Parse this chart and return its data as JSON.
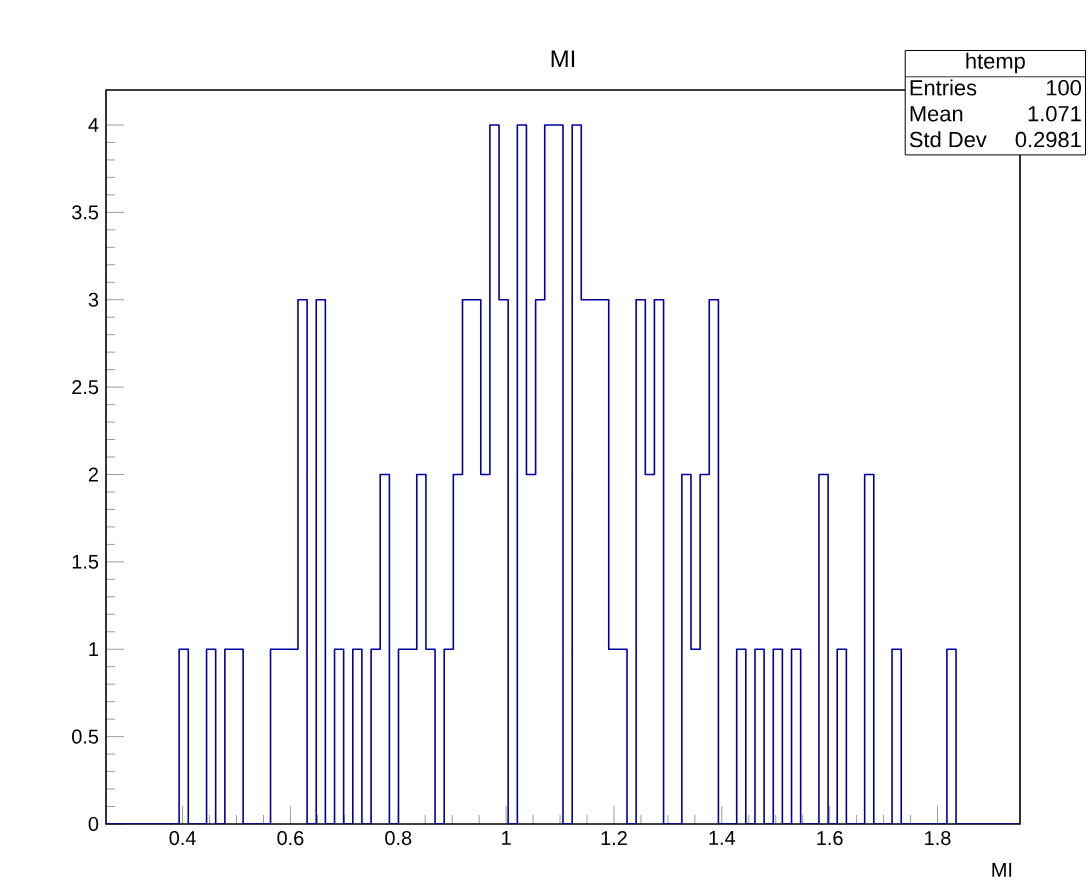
{
  "chart_data": {
    "type": "histogram",
    "title": "MI",
    "xlabel": "MI",
    "bins": [
      0.258,
      0.275,
      0.2919,
      0.3089,
      0.3258,
      0.3428,
      0.3597,
      0.3767,
      0.3936,
      0.4106,
      0.4275,
      0.4445,
      0.4614,
      0.4784,
      0.4953,
      0.5123,
      0.5292,
      0.5462,
      0.5631,
      0.5801,
      0.597,
      0.614,
      0.6309,
      0.6479,
      0.6648,
      0.6818,
      0.6987,
      0.7157,
      0.7326,
      0.7496,
      0.7665,
      0.7835,
      0.8004,
      0.8174,
      0.8343,
      0.8513,
      0.8682,
      0.8852,
      0.9021,
      0.9191,
      0.936,
      0.953,
      0.9699,
      0.9869,
      1.0038,
      1.0208,
      1.0377,
      1.0547,
      1.0716,
      1.0886,
      1.1055,
      1.1225,
      1.1394,
      1.1564,
      1.1733,
      1.1903,
      1.2072,
      1.2242,
      1.2411,
      1.2581,
      1.275,
      1.292,
      1.3089,
      1.3259,
      1.3428,
      1.3598,
      1.3767,
      1.3937,
      1.4106,
      1.4276,
      1.4445,
      1.4615,
      1.4784,
      1.4954,
      1.5123,
      1.5293,
      1.5462,
      1.5632,
      1.5801,
      1.5971,
      1.614,
      1.631,
      1.6479,
      1.6649,
      1.6818,
      1.6988,
      1.7157,
      1.7327,
      1.7496,
      1.7666,
      1.7835,
      1.8005,
      1.8174,
      1.8344,
      1.8513,
      1.8683,
      1.8852,
      1.9022,
      1.9191,
      1.9361,
      1.953
    ],
    "values": [
      0,
      0,
      0,
      0,
      0,
      0,
      0,
      0,
      1,
      0,
      0,
      1,
      0,
      1,
      1,
      0,
      0,
      0,
      1,
      1,
      1,
      3,
      0,
      3,
      0,
      1,
      0,
      1,
      0,
      1,
      2,
      0,
      1,
      1,
      2,
      1,
      0,
      1,
      2,
      3,
      3,
      2,
      4,
      3,
      0,
      4,
      2,
      3,
      4,
      4,
      0,
      4,
      3,
      3,
      3,
      1,
      1,
      0,
      3,
      2,
      3,
      0,
      0,
      2,
      1,
      2,
      3,
      0,
      0,
      1,
      0,
      1,
      0,
      1,
      0,
      1,
      0,
      0,
      2,
      0,
      1,
      0,
      0,
      2,
      0,
      0,
      1,
      0,
      0,
      0,
      0,
      0,
      1,
      0,
      0,
      0,
      0,
      0,
      0,
      0
    ],
    "color": "#0000a0",
    "xlim": [
      0.258,
      1.953
    ],
    "ylim": [
      0,
      4.2
    ],
    "xticks": [
      0.4,
      0.6,
      0.8,
      1,
      1.2,
      1.4,
      1.6,
      1.8
    ],
    "yticks": [
      0,
      0.5,
      1,
      1.5,
      2,
      2.5,
      3,
      3.5,
      4
    ],
    "annotations": [
      "htemp",
      "Entries",
      "100",
      "Mean",
      "1.071",
      "Std Dev",
      "0.2981"
    ]
  }
}
